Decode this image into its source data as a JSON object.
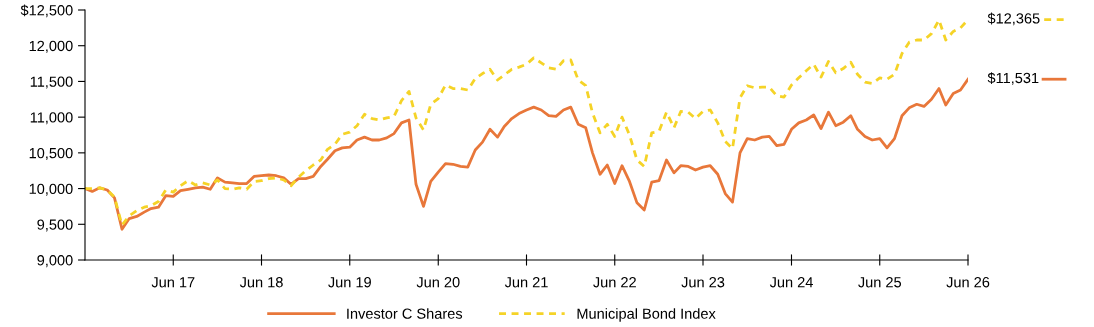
{
  "chart_data": {
    "type": "line",
    "x": [
      "2016-06",
      "2016-07",
      "2016-08",
      "2016-09",
      "2016-10",
      "2016-11",
      "2016-12",
      "2017-01",
      "2017-02",
      "2017-03",
      "2017-04",
      "2017-05",
      "2017-06",
      "2017-07",
      "2017-08",
      "2017-09",
      "2017-10",
      "2017-11",
      "2017-12",
      "2018-01",
      "2018-02",
      "2018-03",
      "2018-04",
      "2018-05",
      "2018-06",
      "2018-07",
      "2018-08",
      "2018-09",
      "2018-10",
      "2018-11",
      "2018-12",
      "2019-01",
      "2019-02",
      "2019-03",
      "2019-04",
      "2019-05",
      "2019-06",
      "2019-07",
      "2019-08",
      "2019-09",
      "2019-10",
      "2019-11",
      "2019-12",
      "2020-01",
      "2020-02",
      "2020-03",
      "2020-04",
      "2020-05",
      "2020-06",
      "2020-07",
      "2020-08",
      "2020-09",
      "2020-10",
      "2020-11",
      "2020-12",
      "2021-01",
      "2021-02",
      "2021-03",
      "2021-04",
      "2021-05",
      "2021-06",
      "2021-07",
      "2021-08",
      "2021-09",
      "2021-10",
      "2021-11",
      "2021-12",
      "2022-01",
      "2022-02",
      "2022-03",
      "2022-04",
      "2022-05",
      "2022-06",
      "2022-07",
      "2022-08",
      "2022-09",
      "2022-10",
      "2022-11",
      "2022-12",
      "2023-01",
      "2023-02",
      "2023-03",
      "2023-04",
      "2023-05",
      "2023-06",
      "2023-07",
      "2023-08",
      "2023-09",
      "2023-10",
      "2023-11",
      "2023-12",
      "2024-01",
      "2024-02",
      "2024-03",
      "2024-04",
      "2024-05",
      "2024-06",
      "2024-07",
      "2024-08",
      "2024-09",
      "2024-10",
      "2024-11",
      "2024-12",
      "2025-01",
      "2025-02",
      "2025-03",
      "2025-04",
      "2025-05",
      "2025-06",
      "2025-07",
      "2025-08",
      "2025-09",
      "2025-10",
      "2025-11",
      "2025-12",
      "2026-01",
      "2026-02",
      "2026-03",
      "2026-04",
      "2026-05",
      "2026-06"
    ],
    "series": [
      {
        "name": "Investor C Shares",
        "color": "#e8773a",
        "line_style": "solid",
        "values": [
          10000,
          9960,
          10010,
          9980,
          9870,
          9430,
          9580,
          9610,
          9670,
          9720,
          9740,
          9900,
          9890,
          9970,
          9990,
          10010,
          10020,
          9990,
          10150,
          10090,
          10080,
          10070,
          10070,
          10170,
          10180,
          10190,
          10180,
          10150,
          10060,
          10140,
          10140,
          10170,
          10310,
          10410,
          10530,
          10570,
          10580,
          10680,
          10720,
          10680,
          10680,
          10710,
          10770,
          10920,
          10960,
          10060,
          9750,
          10100,
          10230,
          10350,
          10340,
          10310,
          10300,
          10540,
          10650,
          10830,
          10720,
          10870,
          10980,
          11050,
          11100,
          11140,
          11100,
          11020,
          11010,
          11100,
          11140,
          10900,
          10850,
          10500,
          10200,
          10330,
          10070,
          10320,
          10100,
          9800,
          9700,
          10090,
          10110,
          10400,
          10220,
          10320,
          10310,
          10260,
          10300,
          10320,
          10200,
          9930,
          9810,
          10500,
          10700,
          10680,
          10720,
          10730,
          10600,
          10620,
          10830,
          10920,
          10960,
          11030,
          10840,
          11070,
          10880,
          10930,
          11020,
          10830,
          10730,
          10680,
          10700,
          10570,
          10700,
          11020,
          11130,
          11180,
          11150,
          11250,
          11400,
          11170,
          11330,
          11380,
          11531
        ]
      },
      {
        "name": "Municipal Bond Index",
        "color": "#f5d327",
        "line_style": "dashed",
        "values": [
          10000,
          10000,
          10010,
          9980,
          9880,
          9490,
          9620,
          9690,
          9740,
          9760,
          9820,
          9980,
          9950,
          10040,
          10110,
          10050,
          10080,
          10050,
          10120,
          10000,
          9990,
          10010,
          9990,
          10100,
          10110,
          10140,
          10150,
          10120,
          10040,
          10160,
          10250,
          10330,
          10400,
          10550,
          10620,
          10760,
          10790,
          10880,
          11040,
          10980,
          10960,
          10990,
          11010,
          11230,
          11360,
          10990,
          10820,
          11180,
          11260,
          11450,
          11400,
          11400,
          11380,
          11540,
          11610,
          11670,
          11520,
          11590,
          11670,
          11700,
          11740,
          11830,
          11760,
          11690,
          11670,
          11790,
          11800,
          11520,
          11440,
          11060,
          10780,
          10900,
          10730,
          11000,
          10750,
          10400,
          10310,
          10780,
          10800,
          11070,
          10850,
          11080,
          11070,
          10980,
          11080,
          11100,
          10920,
          10660,
          10560,
          11270,
          11440,
          11410,
          11420,
          11420,
          11300,
          11280,
          11450,
          11550,
          11650,
          11740,
          11560,
          11780,
          11620,
          11680,
          11770,
          11600,
          11490,
          11470,
          11550,
          11530,
          11600,
          11890,
          12050,
          12080,
          12080,
          12170,
          12360,
          12080,
          12200,
          12250,
          12365
        ]
      }
    ],
    "xlim": [
      "2016-06",
      "2026-06"
    ],
    "xticks": [
      {
        "value": "2017-06",
        "label": "Jun 17"
      },
      {
        "value": "2018-06",
        "label": "Jun 18"
      },
      {
        "value": "2019-06",
        "label": "Jun 19"
      },
      {
        "value": "2020-06",
        "label": "Jun 20"
      },
      {
        "value": "2021-06",
        "label": "Jun 21"
      },
      {
        "value": "2022-06",
        "label": "Jun 22"
      },
      {
        "value": "2023-06",
        "label": "Jun 23"
      },
      {
        "value": "2024-06",
        "label": "Jun 24"
      },
      {
        "value": "2025-06",
        "label": "Jun 25"
      },
      {
        "value": "2026-06",
        "label": "Jun 26"
      }
    ],
    "ylim": [
      9000,
      12500
    ],
    "yticks": [
      {
        "value": 9000,
        "label": "9,000"
      },
      {
        "value": 9500,
        "label": "9,500"
      },
      {
        "value": 10000,
        "label": "10,000"
      },
      {
        "value": 10500,
        "label": "10,500"
      },
      {
        "value": 11000,
        "label": "11,000"
      },
      {
        "value": 11500,
        "label": "11,500"
      },
      {
        "value": 12000,
        "label": "12,000"
      },
      {
        "value": 12500,
        "label": "$12,500"
      }
    ],
    "annotations": [
      {
        "text": "$12,365",
        "x": "2026-06",
        "y": 12365
      },
      {
        "text": "$11,531",
        "x": "2026-06",
        "y": 11531
      }
    ],
    "grid": false,
    "legend": "bottom",
    "marker": "none"
  }
}
